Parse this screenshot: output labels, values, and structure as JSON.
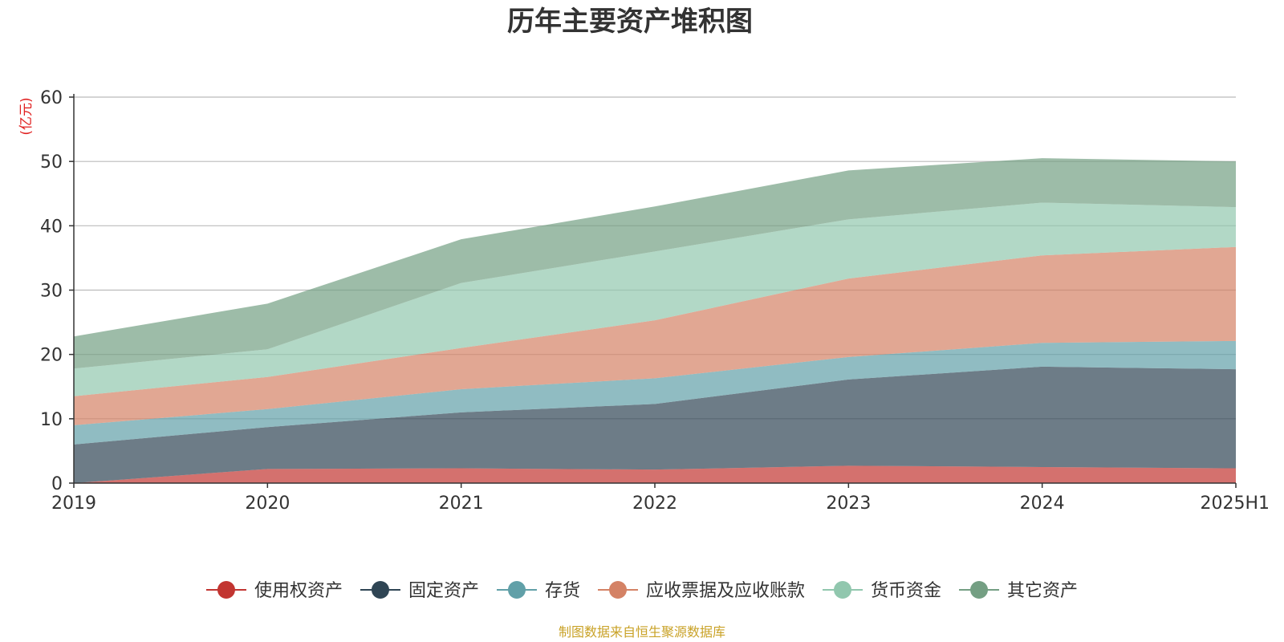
{
  "chart_data": {
    "type": "area",
    "stacked": true,
    "title": "历年主要资产堆积图",
    "unit_label": "(亿元)",
    "categories": [
      "2019",
      "2020",
      "2021",
      "2022",
      "2023",
      "2024",
      "2025H1"
    ],
    "y_ticks": [
      "0",
      "10",
      "20",
      "30",
      "40",
      "50",
      "60"
    ],
    "ylim": [
      0,
      60
    ],
    "grid": true,
    "legend_position": "bottom",
    "series": [
      {
        "name": "使用权资产",
        "color": "#c23531",
        "values": [
          0.0,
          2.2,
          2.3,
          2.1,
          2.7,
          2.5,
          2.3
        ]
      },
      {
        "name": "固定资产",
        "color": "#2f4554",
        "values": [
          6.0,
          6.5,
          8.7,
          10.2,
          13.4,
          15.6,
          15.4
        ]
      },
      {
        "name": "存货",
        "color": "#61a0a8",
        "values": [
          3.0,
          2.8,
          3.6,
          4.0,
          3.5,
          3.7,
          4.4
        ]
      },
      {
        "name": "应收票据及应收账款",
        "color": "#d48265",
        "values": [
          4.5,
          5.0,
          6.4,
          9.0,
          12.2,
          13.6,
          14.6
        ]
      },
      {
        "name": "货币资金",
        "color": "#91c7ae",
        "values": [
          4.3,
          4.3,
          10.1,
          10.7,
          9.2,
          8.2,
          6.2
        ]
      },
      {
        "name": "其它资产",
        "color": "#749f83",
        "values": [
          5.0,
          7.1,
          6.8,
          7.0,
          7.6,
          6.9,
          7.1
        ]
      }
    ]
  },
  "footer": {
    "source": "制图数据来自恒生聚源数据库"
  }
}
